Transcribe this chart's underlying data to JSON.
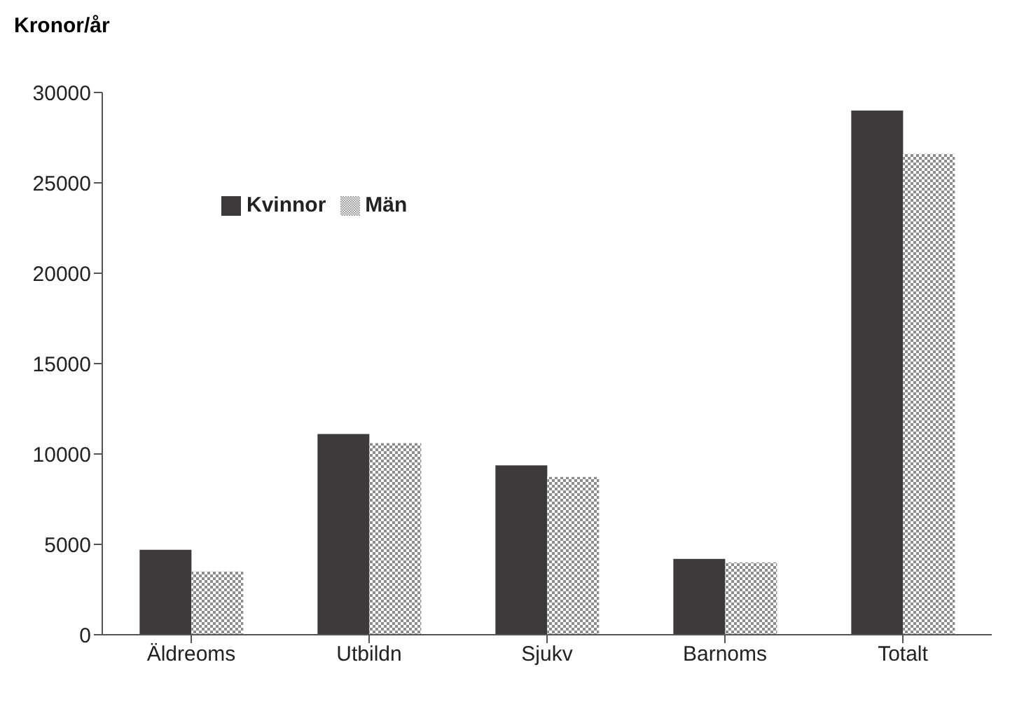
{
  "chart_data": {
    "type": "bar",
    "ylabel": "Kronor/år",
    "categories": [
      "Äldreoms",
      "Utbildn",
      "Sjukv",
      "Barnoms",
      "Totalt"
    ],
    "series": [
      {
        "name": "Kvinnor",
        "color": "#3d3a3b",
        "values": [
          4700,
          11100,
          9370,
          4200,
          29000
        ]
      },
      {
        "name": "Män",
        "color": "#8c8c8c",
        "values": [
          3500,
          10600,
          8730,
          4000,
          26600
        ]
      }
    ],
    "ylim": [
      0,
      30000
    ],
    "yticks": [
      0,
      5000,
      10000,
      15000,
      20000,
      25000,
      30000
    ],
    "grid": false,
    "legend": "top left"
  }
}
